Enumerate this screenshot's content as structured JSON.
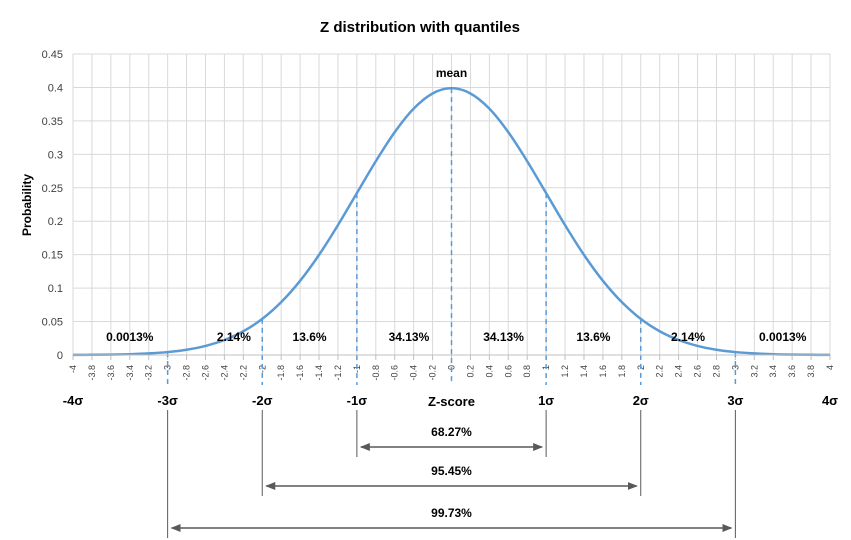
{
  "chart_data": {
    "type": "line",
    "title": "Z distribution with quantiles",
    "xlabel": "Z-score",
    "ylabel": "Probability",
    "xlim": [
      -4,
      4
    ],
    "ylim": [
      0,
      0.45
    ],
    "grid": true,
    "yticks": [
      "0",
      "0.05",
      "0.1",
      "0.15",
      "0.2",
      "0.25",
      "0.3",
      "0.35",
      "0.4",
      "0.45"
    ],
    "xticks": [
      "-4",
      "-3.8",
      "-3.6",
      "-3.4",
      "-3.2",
      "-3",
      "-2.8",
      "-2.6",
      "-2.4",
      "-2.2",
      "-2",
      "-1.8",
      "-1.6",
      "-1.4",
      "-1.2",
      "-1",
      "-0.8",
      "-0.6",
      "-0.4",
      "-0.2",
      "0",
      "0.2",
      "0.4",
      "0.6",
      "0.8",
      "1",
      "1.2",
      "1.4",
      "1.6",
      "1.8",
      "2",
      "2.2",
      "2.4",
      "2.6",
      "2.8",
      "3",
      "3.2",
      "3.4",
      "3.6",
      "3.8",
      "4"
    ],
    "series": [
      {
        "color": "#5b9bd5",
        "x": [
          -4,
          -3.8,
          -3.6,
          -3.4,
          -3.2,
          -3,
          -2.8,
          -2.6,
          -2.4,
          -2.2,
          -2,
          -1.8,
          -1.6,
          -1.4,
          -1.2,
          -1,
          -0.8,
          -0.6,
          -0.4,
          -0.2,
          0,
          0.2,
          0.4,
          0.6,
          0.8,
          1,
          1.2,
          1.4,
          1.6,
          1.8,
          2,
          2.2,
          2.4,
          2.6,
          2.8,
          3,
          3.2,
          3.4,
          3.6,
          3.8,
          4
        ],
        "y": [
          0.0001,
          0.0003,
          0.0006,
          0.0012,
          0.0024,
          0.0044,
          0.0079,
          0.0136,
          0.0224,
          0.0355,
          0.054,
          0.079,
          0.1109,
          0.1497,
          0.1942,
          0.242,
          0.2897,
          0.3332,
          0.3683,
          0.391,
          0.3989,
          0.391,
          0.3683,
          0.3332,
          0.2897,
          0.242,
          0.1942,
          0.1497,
          0.1109,
          0.079,
          0.054,
          0.0355,
          0.0224,
          0.0136,
          0.0079,
          0.0044,
          0.0024,
          0.0012,
          0.0006,
          0.0003,
          0.0001
        ]
      }
    ],
    "sigma_lines": [
      -3,
      -2,
      -1,
      0,
      1,
      2,
      3
    ],
    "sigma_labels": [
      {
        "x": -4,
        "text": "-4σ"
      },
      {
        "x": -3,
        "text": "-3σ"
      },
      {
        "x": -2,
        "text": "-2σ"
      },
      {
        "x": -1,
        "text": "-1σ"
      },
      {
        "x": 1,
        "text": "1σ"
      },
      {
        "x": 2,
        "text": "2σ"
      },
      {
        "x": 3,
        "text": "3σ"
      },
      {
        "x": 4,
        "text": "4σ"
      }
    ],
    "mean_label": "mean",
    "region_labels": [
      {
        "x": -3.4,
        "text": "0.0013%"
      },
      {
        "x": -2.3,
        "text": "2.14%"
      },
      {
        "x": -1.5,
        "text": "13.6%"
      },
      {
        "x": -0.45,
        "text": "34.13%"
      },
      {
        "x": 0.55,
        "text": "34.13%"
      },
      {
        "x": 1.5,
        "text": "13.6%"
      },
      {
        "x": 2.5,
        "text": "2.14%"
      },
      {
        "x": 3.5,
        "text": "0.0013%"
      }
    ],
    "ranges": [
      {
        "from": -1,
        "to": 1,
        "text": "68.27%"
      },
      {
        "from": -2,
        "to": 2,
        "text": "95.45%"
      },
      {
        "from": -3,
        "to": 3,
        "text": "99.73%"
      }
    ]
  }
}
